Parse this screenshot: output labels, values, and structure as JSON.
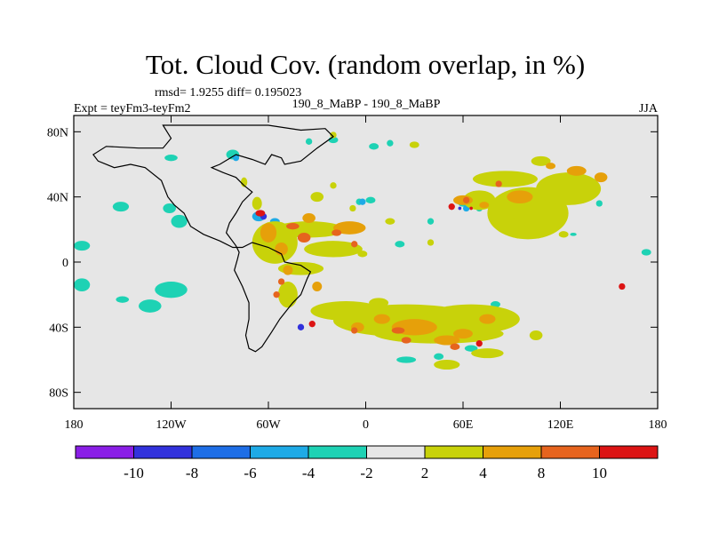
{
  "chart_data": {
    "type": "heatmap",
    "title": "Tot. Cloud Cov. (random overlap, in %)",
    "stats_label": "rmsd= 1.9255 diff= 0.195023",
    "left_label": "Expt = teyFm3-teyFm2",
    "center_label": "190_8_MaBP - 190_8_MaBP",
    "right_label": "JJA",
    "x_range": [
      -180,
      180
    ],
    "y_range": [
      -90,
      90
    ],
    "x_ticks": [
      {
        "value": -180,
        "label": "180"
      },
      {
        "value": -120,
        "label": "120W"
      },
      {
        "value": -60,
        "label": "60W"
      },
      {
        "value": 0,
        "label": "0"
      },
      {
        "value": 60,
        "label": "60E"
      },
      {
        "value": 120,
        "label": "120E"
      },
      {
        "value": 180,
        "label": "180"
      }
    ],
    "y_ticks": [
      {
        "value": 80,
        "label": "80N"
      },
      {
        "value": 40,
        "label": "40N"
      },
      {
        "value": 0,
        "label": "0"
      },
      {
        "value": -40,
        "label": "40S"
      },
      {
        "value": -80,
        "label": "80S"
      }
    ],
    "colorbar": {
      "colors": [
        "#8a1ee6",
        "#3232dc",
        "#1e6ee6",
        "#1eaae6",
        "#1ed2b4",
        "#e6e6e6",
        "#c8d20a",
        "#e6a00a",
        "#e6641e",
        "#dc1414"
      ],
      "labels": [
        "-10",
        "-8",
        "-6",
        "-4",
        "-2",
        "2",
        "4",
        "8",
        "10"
      ]
    },
    "coastline": [
      [
        -125,
        84
      ],
      [
        -60,
        84
      ],
      [
        -40,
        81
      ],
      [
        -25,
        82
      ],
      [
        -20,
        77
      ],
      [
        -30,
        70
      ],
      [
        -40,
        62
      ],
      [
        -50,
        60
      ],
      [
        -52,
        64
      ],
      [
        -58,
        66
      ],
      [
        -62,
        60
      ],
      [
        -70,
        63
      ],
      [
        -80,
        66
      ],
      [
        -90,
        60
      ],
      [
        -95,
        58
      ],
      [
        -88,
        55
      ],
      [
        -80,
        52
      ],
      [
        -75,
        47
      ],
      [
        -70,
        43
      ],
      [
        -76,
        37
      ],
      [
        -80,
        30
      ],
      [
        -84,
        24
      ],
      [
        -86,
        18
      ],
      [
        -80,
        10
      ],
      [
        -78,
        6
      ],
      [
        -79,
        2
      ],
      [
        -81,
        -5
      ],
      [
        -76,
        -15
      ],
      [
        -72,
        -25
      ],
      [
        -72,
        -35
      ],
      [
        -74,
        -45
      ],
      [
        -72,
        -53
      ],
      [
        -68,
        -55
      ],
      [
        -64,
        -52
      ],
      [
        -58,
        -43
      ],
      [
        -53,
        -35
      ],
      [
        -45,
        -25
      ],
      [
        -40,
        -20
      ],
      [
        -36,
        -10
      ],
      [
        -34,
        -6
      ],
      [
        -40,
        -2
      ],
      [
        -50,
        0
      ],
      [
        -52,
        5
      ],
      [
        -60,
        9
      ],
      [
        -70,
        12
      ],
      [
        -76,
        9
      ],
      [
        -82,
        9
      ],
      [
        -90,
        13
      ],
      [
        -100,
        17
      ],
      [
        -108,
        22
      ],
      [
        -112,
        30
      ],
      [
        -118,
        35
      ],
      [
        -122,
        40
      ],
      [
        -124,
        45
      ],
      [
        -126,
        50
      ],
      [
        -136,
        58
      ],
      [
        -145,
        60
      ],
      [
        -155,
        58
      ],
      [
        -165,
        62
      ],
      [
        -168,
        66
      ],
      [
        -160,
        71
      ],
      [
        -140,
        70
      ],
      [
        -125,
        70
      ],
      [
        -120,
        76
      ],
      [
        -125,
        84
      ]
    ],
    "series": [
      {
        "name": "difference -4 to -2",
        "color": "#1ed2b4",
        "blobs": [
          [
            -151,
            34,
            5,
            3
          ],
          [
            -121,
            33,
            4,
            3
          ],
          [
            -115,
            25,
            5,
            4
          ],
          [
            -175,
            10,
            5,
            3
          ],
          [
            -175,
            -14,
            5,
            4
          ],
          [
            -120,
            -17,
            10,
            5
          ],
          [
            -133,
            -27,
            7,
            4
          ],
          [
            -150,
            -23,
            4,
            2
          ],
          [
            -120,
            64,
            4,
            2
          ],
          [
            -82,
            66,
            4,
            3
          ],
          [
            -20,
            75,
            3,
            2
          ],
          [
            -35,
            74,
            2,
            2
          ],
          [
            5,
            71,
            3,
            2
          ],
          [
            15,
            73,
            2,
            2
          ],
          [
            3,
            38,
            3,
            2
          ],
          [
            -4,
            37,
            2,
            2
          ],
          [
            21,
            11,
            3,
            2
          ],
          [
            25,
            -60,
            6,
            2
          ],
          [
            65,
            -53,
            4,
            2
          ],
          [
            45,
            -58,
            3,
            2
          ],
          [
            80,
            -26,
            3,
            2
          ],
          [
            60,
            36,
            3,
            2
          ],
          [
            70,
            33,
            2,
            2
          ],
          [
            113,
            36,
            4,
            2
          ],
          [
            144,
            36,
            2,
            2
          ],
          [
            173,
            6,
            3,
            2
          ],
          [
            40,
            25,
            2,
            2
          ],
          [
            -60,
            20,
            2,
            2
          ],
          [
            128,
            17,
            2,
            1
          ]
        ]
      },
      {
        "name": "difference -6 to -4",
        "color": "#1eaae6",
        "blobs": [
          [
            -66,
            28,
            4,
            3
          ],
          [
            -56,
            25,
            3,
            2
          ],
          [
            -80,
            64,
            2,
            2
          ],
          [
            -2,
            37,
            2,
            2
          ],
          [
            62,
            33,
            2,
            2
          ],
          [
            55,
            -42,
            2,
            2
          ],
          [
            40,
            -48,
            2,
            2
          ]
        ]
      },
      {
        "name": "difference -8 to -6",
        "color": "#3232dc",
        "blobs": [
          [
            -63,
            28,
            2,
            2
          ],
          [
            -40,
            -40,
            2,
            2
          ],
          [
            -5,
            -42,
            1,
            1
          ],
          [
            58,
            33,
            1,
            1
          ]
        ]
      },
      {
        "name": "difference 2 to 4",
        "color": "#c8d20a",
        "blobs": [
          [
            -56,
            12,
            14,
            13
          ],
          [
            -35,
            20,
            22,
            5
          ],
          [
            -20,
            8,
            18,
            5
          ],
          [
            -40,
            -4,
            14,
            4
          ],
          [
            -48,
            -20,
            6,
            8
          ],
          [
            -30,
            40,
            4,
            3
          ],
          [
            -20,
            47,
            2,
            2
          ],
          [
            -8,
            33,
            2,
            2
          ],
          [
            25,
            -36,
            45,
            10
          ],
          [
            45,
            -44,
            40,
            6
          ],
          [
            65,
            -35,
            30,
            9
          ],
          [
            -12,
            -30,
            22,
            6
          ],
          [
            75,
            -56,
            10,
            3
          ],
          [
            100,
            30,
            25,
            16
          ],
          [
            70,
            38,
            10,
            6
          ],
          [
            86,
            51,
            20,
            5
          ],
          [
            125,
            45,
            20,
            10
          ],
          [
            108,
            62,
            6,
            3
          ],
          [
            95,
            25,
            5,
            3
          ],
          [
            15,
            25,
            3,
            2
          ],
          [
            8,
            -25,
            6,
            3
          ],
          [
            105,
            -45,
            4,
            3
          ],
          [
            30,
            72,
            3,
            2
          ],
          [
            -20,
            78,
            2,
            2
          ],
          [
            50,
            -63,
            8,
            3
          ],
          [
            -75,
            49,
            2,
            3
          ],
          [
            -67,
            36,
            3,
            4
          ],
          [
            40,
            12,
            2,
            2
          ],
          [
            122,
            17,
            3,
            2
          ],
          [
            -2,
            5,
            3,
            2
          ]
        ]
      },
      {
        "name": "difference 4 to 8",
        "color": "#e6a00a",
        "blobs": [
          [
            -60,
            18,
            5,
            6
          ],
          [
            -52,
            8,
            4,
            4
          ],
          [
            -48,
            -5,
            3,
            3
          ],
          [
            -30,
            -15,
            3,
            3
          ],
          [
            -10,
            21,
            10,
            4
          ],
          [
            -35,
            27,
            4,
            3
          ],
          [
            30,
            -40,
            14,
            5
          ],
          [
            50,
            -48,
            8,
            3
          ],
          [
            75,
            -35,
            5,
            3
          ],
          [
            60,
            -44,
            6,
            3
          ],
          [
            10,
            -35,
            5,
            3
          ],
          [
            60,
            38,
            6,
            3
          ],
          [
            73,
            35,
            3,
            2
          ],
          [
            95,
            40,
            8,
            4
          ],
          [
            130,
            56,
            6,
            3
          ],
          [
            114,
            59,
            3,
            2
          ],
          [
            145,
            52,
            4,
            3
          ],
          [
            -5,
            -40,
            4,
            3
          ]
        ]
      },
      {
        "name": "difference 8 to 10",
        "color": "#e6641e",
        "blobs": [
          [
            -45,
            22,
            4,
            2
          ],
          [
            -38,
            15,
            4,
            3
          ],
          [
            -18,
            18,
            3,
            2
          ],
          [
            -7,
            11,
            2,
            2
          ],
          [
            25,
            -48,
            3,
            2
          ],
          [
            55,
            -52,
            3,
            2
          ],
          [
            20,
            -42,
            4,
            2
          ],
          [
            -52,
            -12,
            2,
            2
          ],
          [
            -55,
            -20,
            2,
            2
          ],
          [
            82,
            48,
            2,
            2
          ],
          [
            -7,
            -42,
            2,
            2
          ],
          [
            62,
            38,
            2,
            2
          ]
        ]
      },
      {
        "name": "difference above 10",
        "color": "#dc1414",
        "blobs": [
          [
            -65,
            30,
            3,
            2
          ],
          [
            53,
            34,
            2,
            2
          ],
          [
            158,
            -15,
            2,
            2
          ],
          [
            -33,
            -38,
            2,
            2
          ],
          [
            70,
            -50,
            2,
            2
          ],
          [
            65,
            33,
            1,
            1
          ]
        ]
      }
    ]
  }
}
